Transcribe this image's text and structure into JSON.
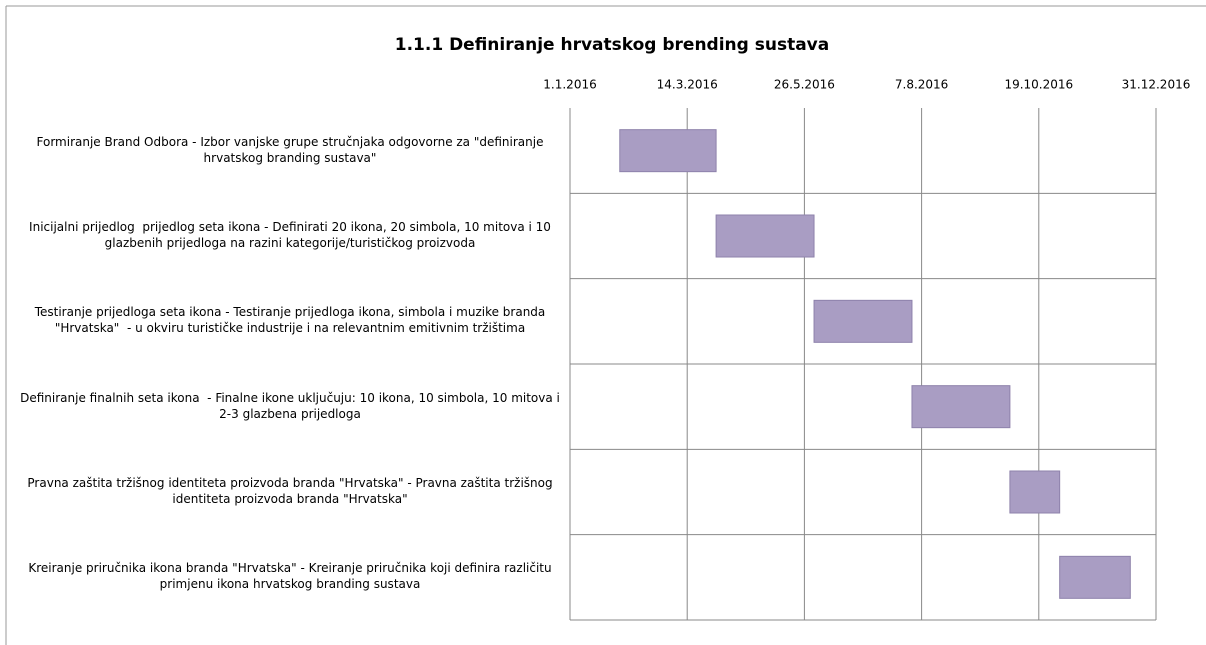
{
  "chart_data": {
    "type": "gantt",
    "title": "1.1.1 Definiranje hrvatskog brending sustava",
    "xlim": [
      "1.1.2016",
      "31.12.2016"
    ],
    "xticks": [
      "1.1.2016",
      "14.3.2016",
      "26.5.2016",
      "7.8.2016",
      "19.10.2016",
      "31.12.2016"
    ],
    "color": "#a99dc3",
    "grid": true,
    "tasks": [
      {
        "name": "Formiranje Brand Odbora - Izbor vanjske grupe stručnjaka odgovorne za \"definiranje hrvatskog branding sustava\"",
        "start": "1.2.2016",
        "end": "1.4.2016"
      },
      {
        "name": "Inicijalni prijedlog  prijedlog seta ikona - Definirati 20 ikona, 20 simbola, 10 mitova i 10 glazbenih prijedloga na razini kategorije/turističkog proizvoda",
        "start": "1.4.2016",
        "end": "1.6.2016"
      },
      {
        "name": "Testiranje prijedloga seta ikona - Testiranje prijedloga ikona, simbola i muzike branda \"Hrvatska\"  - u okviru turističke industrije i na relevantnim emitivnim tržištima",
        "start": "1.6.2016",
        "end": "1.8.2016"
      },
      {
        "name": "Definiranje finalnih seta ikona  - Finalne ikone uključuju: 10 ikona, 10 simbola, 10 mitova i 2-3 glazbena prijedloga",
        "start": "1.8.2016",
        "end": "1.10.2016"
      },
      {
        "name": "Pravna zaštita tržišnog identiteta proizvoda branda \"Hrvatska\" - Pravna zaštita tržišnog identiteta proizvoda branda \"Hrvatska\"",
        "start": "1.10.2016",
        "end": "1.11.2016"
      },
      {
        "name": "Kreiranje priručnika ikona branda \"Hrvatska\" - Kreiranje priručnika koji definira različitu primjenu ikona hrvatskog branding sustava",
        "start": "1.11.2016",
        "end": "15.12.2016"
      }
    ]
  }
}
